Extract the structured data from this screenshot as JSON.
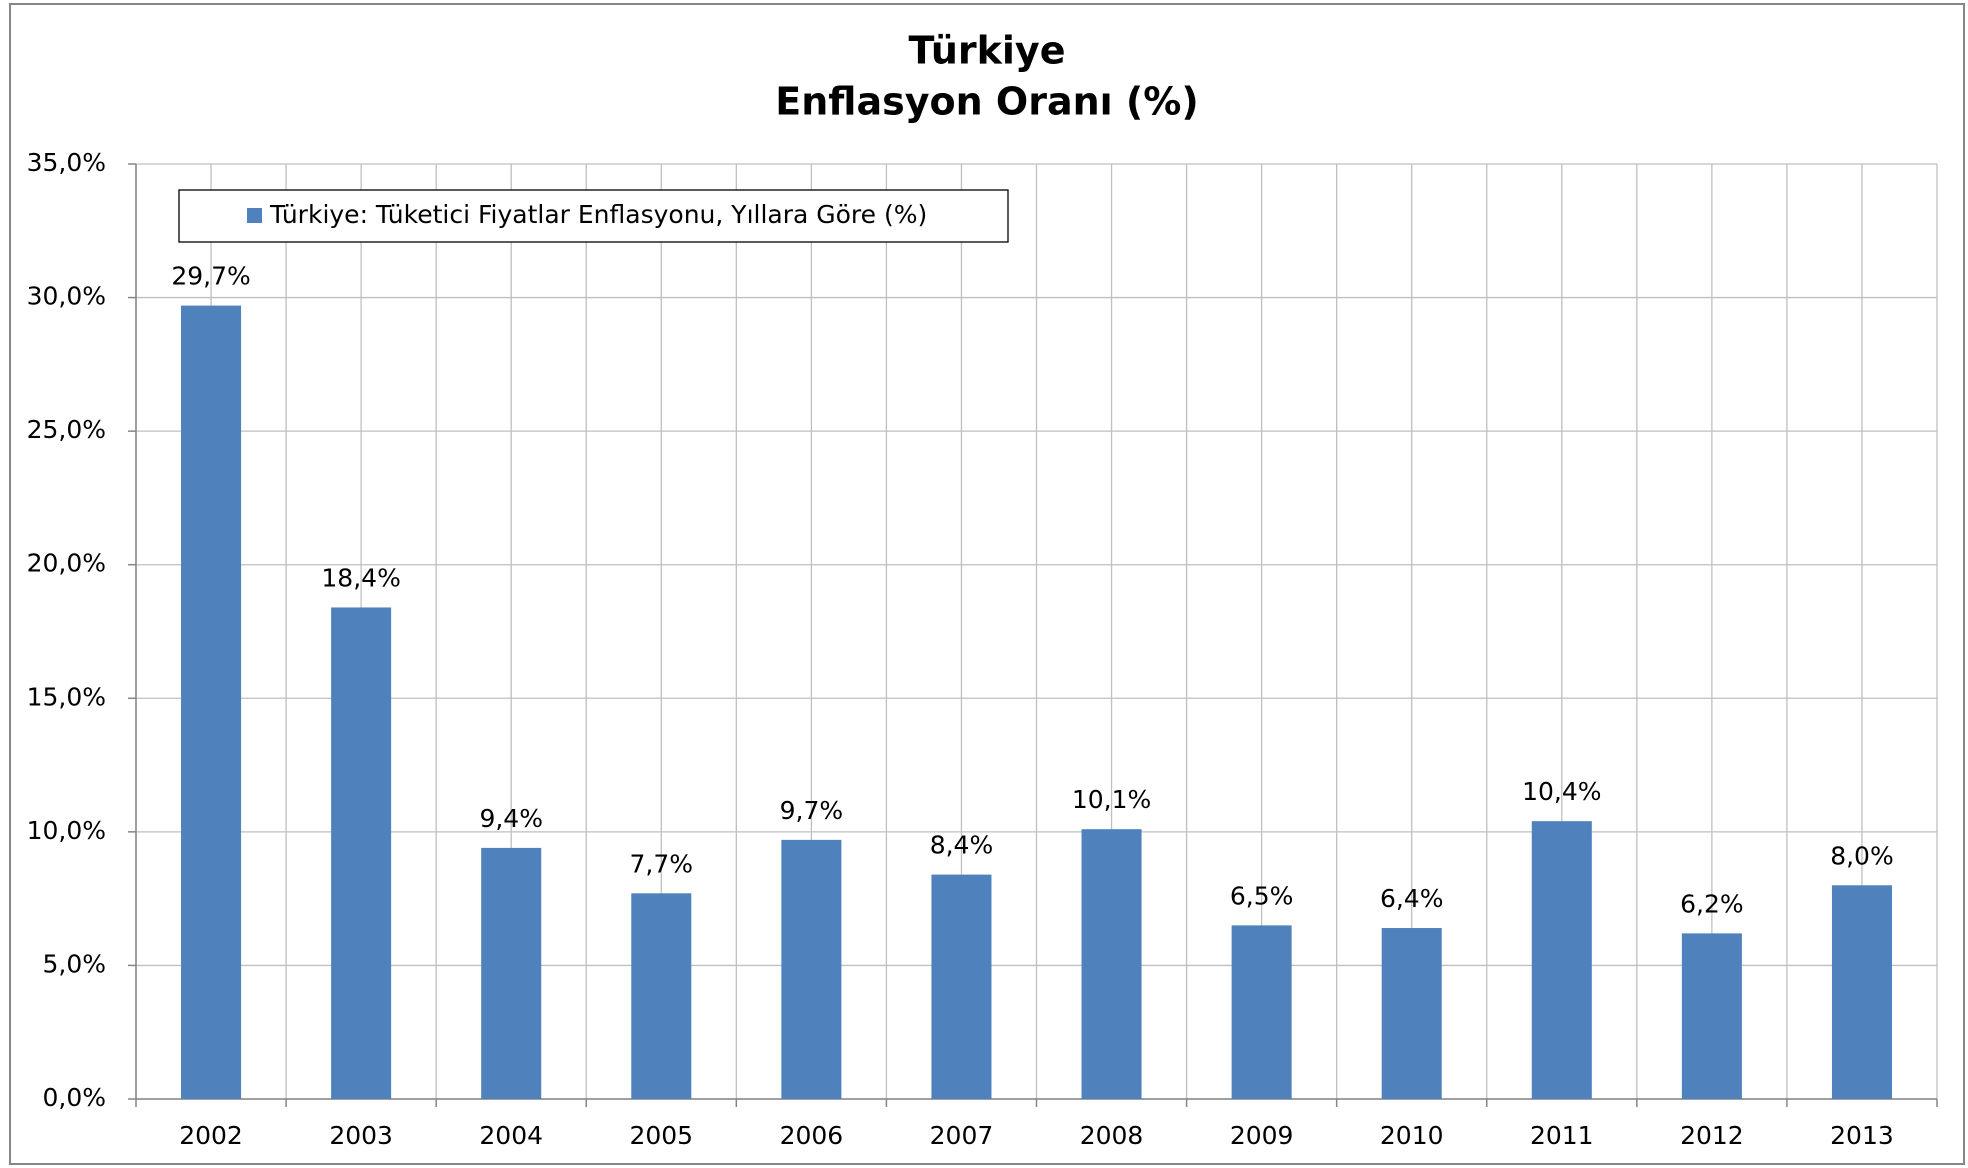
{
  "chart_data": {
    "type": "bar",
    "title": "Türkiye",
    "subtitle": "Enflasyon Oranı (%)",
    "categories": [
      "2002",
      "2003",
      "2004",
      "2005",
      "2006",
      "2007",
      "2008",
      "2009",
      "2010",
      "2011",
      "2012",
      "2013"
    ],
    "series": [
      {
        "name": "Türkiye: Tüketici Fiyatlar Enflasyonu, Yıllara Göre (%)",
        "color": "#4f81bd",
        "values": [
          29.7,
          18.4,
          9.4,
          7.7,
          9.7,
          8.4,
          10.1,
          6.5,
          6.4,
          10.4,
          6.2,
          8.0
        ],
        "value_labels": [
          "29,7%",
          "18,4%",
          "9,4%",
          "7,7%",
          "9,7%",
          "8,4%",
          "10,1%",
          "6,5%",
          "6,4%",
          "10,4%",
          "6,2%",
          "8,0%"
        ]
      }
    ],
    "ylim": [
      0,
      35
    ],
    "yticks": [
      {
        "value": 0,
        "label": "0,0%"
      },
      {
        "value": 5,
        "label": "5,0%"
      },
      {
        "value": 10,
        "label": "10,0%"
      },
      {
        "value": 15,
        "label": "15,0%"
      },
      {
        "value": 20,
        "label": "20,0%"
      },
      {
        "value": 25,
        "label": "25,0%"
      },
      {
        "value": 30,
        "label": "30,0%"
      },
      {
        "value": 35,
        "label": "35,0%"
      }
    ],
    "grid": true,
    "legend": "top-left"
  }
}
